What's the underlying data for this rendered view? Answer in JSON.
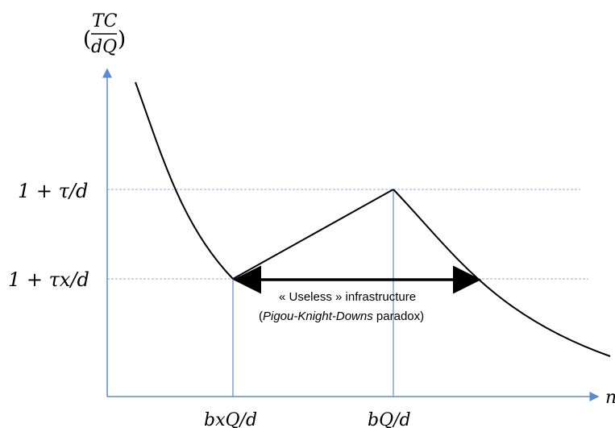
{
  "y_axis_label": {
    "numerator": "TC",
    "denominator": "dQ",
    "open_paren": "(",
    "close_paren": ")"
  },
  "x_axis_label": "n",
  "levels": [
    {
      "id": "high",
      "label": "1 + τ/d"
    },
    {
      "id": "low",
      "label": "1 + τx/d"
    }
  ],
  "x_ticks": [
    {
      "id": "bxq",
      "label": "bxQ/d"
    },
    {
      "id": "bq",
      "label": "bQ/d"
    }
  ],
  "annotation": {
    "line1": "« Useless » infrastructure",
    "line2_open": "(",
    "line2_italic": "Pigou-Knight-Downs",
    "line2_rest": " paradox)"
  },
  "colors": {
    "axis": "#5b8bd0",
    "gridline": "#8fb0dc",
    "curve": "#000000",
    "arrow": "#000000"
  }
}
